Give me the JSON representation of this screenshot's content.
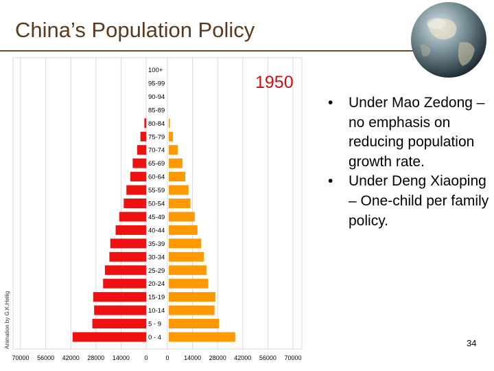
{
  "slide": {
    "title": "China’s Population Policy",
    "page_number": "34",
    "bullets": [
      {
        "text": "Under Mao Zedong – no emphasis on reducing population growth rate."
      },
      {
        "text": "Under Deng Xiaoping – One-child per family policy."
      }
    ],
    "bullet_symbol": "•"
  },
  "chart_data": {
    "type": "bar",
    "orientation": "horizontal",
    "subtype": "population-pyramid",
    "year_label": "1950",
    "credit": "Animation by G.K.Heilig",
    "age_groups": [
      "0 - 4",
      "5 - 9",
      "10-14",
      "15-19",
      "20-24",
      "25-29",
      "30-34",
      "35-39",
      "40-44",
      "45-49",
      "50-54",
      "55-59",
      "60-64",
      "65-69",
      "70-74",
      "75-79",
      "80-84",
      "85-89",
      "90-94",
      "95-99",
      "100+"
    ],
    "male_ticks": [
      "70000",
      "56000",
      "42000",
      "28000",
      "14000",
      "0"
    ],
    "female_ticks": [
      "0",
      "14000",
      "28000",
      "42000",
      "56000",
      "70000"
    ],
    "xlim": [
      0,
      70000
    ],
    "series": [
      {
        "color": "#ee1111",
        "side": "left",
        "values": [
          41000,
          30000,
          29000,
          29500,
          24000,
          23000,
          20500,
          20000,
          17000,
          15000,
          12500,
          11000,
          8800,
          7500,
          5000,
          3200,
          1000,
          0,
          0,
          0,
          0
        ]
      },
      {
        "color": "#ff9900",
        "side": "right",
        "values": [
          37000,
          28000,
          25500,
          26000,
          22000,
          21000,
          19500,
          18000,
          16000,
          14500,
          12000,
          11000,
          9200,
          7600,
          5000,
          2300,
          600,
          0,
          0,
          0,
          0
        ]
      }
    ],
    "grid": true,
    "colors": {
      "male": "#ee1111",
      "female": "#ff9900",
      "year": "#cc1111",
      "grid": "#d8d8d8"
    }
  }
}
